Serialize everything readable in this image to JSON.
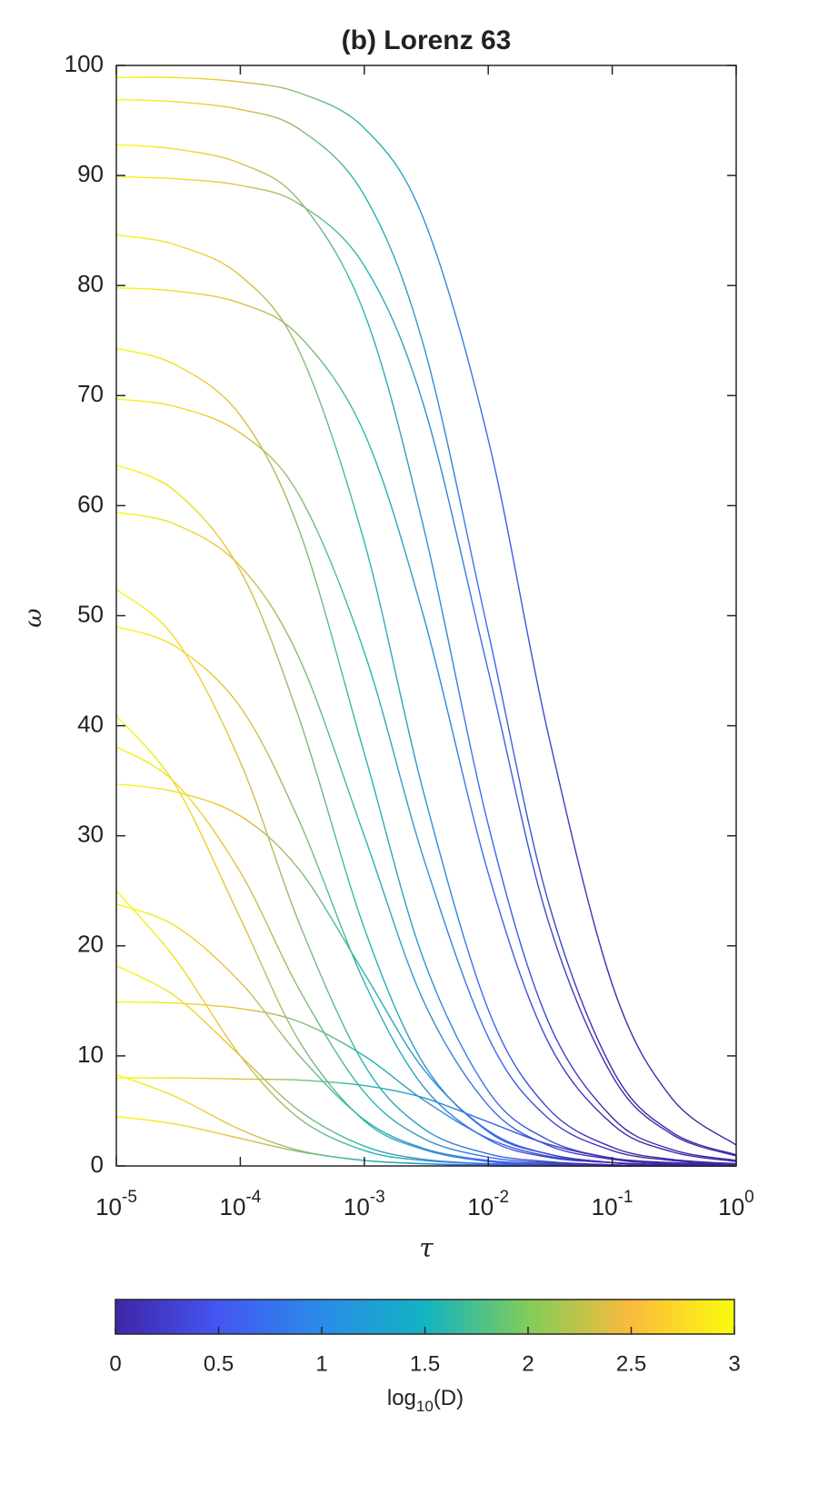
{
  "chart_data": {
    "type": "line",
    "title": "(b) Lorenz 63",
    "x_label": "τ",
    "y_label": "ω",
    "x_scale": "log",
    "x": [
      1e-05,
      3e-05,
      0.0001,
      0.0003,
      0.001,
      0.003,
      0.01,
      0.03,
      0.1,
      0.3,
      1
    ],
    "xlim": [
      1e-05,
      1
    ],
    "xticks": [
      {
        "value": 1e-05,
        "label": "10",
        "exponent": "-5"
      },
      {
        "value": 0.0001,
        "label": "10",
        "exponent": "-4"
      },
      {
        "value": 0.001,
        "label": "10",
        "exponent": "-3"
      },
      {
        "value": 0.01,
        "label": "10",
        "exponent": "-2"
      },
      {
        "value": 0.1,
        "label": "10",
        "exponent": "-1"
      },
      {
        "value": 1,
        "label": "10",
        "exponent": "0"
      }
    ],
    "ylim": [
      0,
      100
    ],
    "yticks": [
      0,
      10,
      20,
      30,
      40,
      50,
      60,
      70,
      80,
      90,
      100
    ],
    "series": [
      {
        "values": [
          98.9,
          98.9,
          98.5,
          97.5,
          94.3,
          86.1,
          66,
          39.6,
          16.5,
          6.2,
          1.9
        ]
      },
      {
        "values": [
          96.9,
          96.7,
          96,
          94.2,
          88.2,
          74.6,
          48.5,
          24.3,
          8.8,
          3.1,
          1
        ]
      },
      {
        "values": [
          92.8,
          92.4,
          91.1,
          87.7,
          77.5,
          58.1,
          31,
          13.3,
          4.4,
          1.5,
          0.5
        ]
      },
      {
        "values": [
          89.9,
          89.7,
          89.1,
          87.4,
          81.8,
          69.2,
          45,
          22.5,
          8.2,
          2.9,
          0.9
        ]
      },
      {
        "values": [
          84.6,
          83.7,
          80.9,
          74,
          56.7,
          34,
          14.2,
          5.3,
          1.7,
          0.6,
          0.2
        ]
      },
      {
        "values": [
          79.8,
          79.5,
          78.4,
          75.4,
          66.6,
          50,
          26.6,
          11.4,
          3.8,
          1.3,
          0.4
        ]
      },
      {
        "values": [
          74.3,
          72.8,
          68.2,
          57.7,
          37.5,
          18.8,
          6.8,
          2.4,
          0.7,
          0.2,
          0.1
        ]
      },
      {
        "values": [
          69.7,
          69,
          66.6,
          60.9,
          46.7,
          28,
          11.7,
          4.4,
          1.4,
          0.5,
          0.1
        ]
      },
      {
        "values": [
          63.7,
          61.3,
          54.1,
          40.6,
          21.6,
          9.3,
          3.1,
          1.1,
          0.3,
          0.1,
          0
        ]
      },
      {
        "values": [
          59.4,
          58.3,
          54.5,
          46.1,
          30,
          15,
          5.5,
          1.9,
          0.6,
          0.2,
          0.1
        ]
      },
      {
        "values": [
          52.4,
          47.9,
          36.7,
          22,
          9.2,
          3.4,
          1.1,
          0.4,
          0.1,
          0,
          0
        ]
      },
      {
        "values": [
          49,
          47.2,
          41.7,
          31.3,
          16.7,
          7.2,
          2.4,
          0.8,
          0.3,
          0.1,
          0
        ]
      },
      {
        "values": [
          40.9,
          34.6,
          22.5,
          11.3,
          4.1,
          1.5,
          0.4,
          0.1,
          0,
          0,
          0
        ]
      },
      {
        "values": [
          38.1,
          34.8,
          26.7,
          16,
          6.7,
          2.5,
          0.8,
          0.3,
          0.1,
          0,
          0
        ]
      },
      {
        "values": [
          34.7,
          34,
          31.8,
          26.9,
          17.5,
          8.8,
          3.2,
          1.1,
          0.3,
          0.1,
          0
        ]
      },
      {
        "values": [
          25,
          18.8,
          10,
          4.3,
          1.4,
          0.5,
          0.2,
          0.1,
          0,
          0,
          0
        ]
      },
      {
        "values": [
          23.8,
          21.8,
          16.7,
          10,
          4.2,
          1.6,
          0.5,
          0.2,
          0,
          0,
          0
        ]
      },
      {
        "values": [
          18.2,
          15.4,
          10,
          5,
          1.8,
          0.6,
          0.2,
          0.1,
          0,
          0,
          0
        ]
      },
      {
        "values": [
          14.9,
          14.8,
          14.3,
          13.1,
          10,
          6,
          2.5,
          0.9,
          0.3,
          0.1,
          0
        ]
      },
      {
        "values": [
          8.3,
          6.3,
          3.3,
          1.4,
          0.5,
          0.2,
          0.1,
          0,
          0,
          0,
          0
        ]
      },
      {
        "values": [
          8,
          8,
          7.9,
          7.8,
          7.3,
          6.2,
          4,
          2,
          0.7,
          0.3,
          0.1
        ]
      },
      {
        "values": [
          4.5,
          3.8,
          2.5,
          1.3,
          0.5,
          0.2,
          0,
          0,
          0,
          0,
          0
        ]
      }
    ],
    "color_by_tau": [
      {
        "tau": 1e-05,
        "d": 3
      },
      {
        "tau": 0.0001,
        "d": 2.4
      },
      {
        "tau": 0.001,
        "d": 1.6
      },
      {
        "tau": 0.01,
        "d": 0.7
      },
      {
        "tau": 0.1,
        "d": 0
      }
    ],
    "colorbar": {
      "label": "log",
      "label_sub": "10",
      "label_rest": "(D)",
      "lim": [
        0,
        3
      ],
      "ticks": [
        0,
        0.5,
        1,
        1.5,
        2,
        2.5,
        3
      ],
      "colormap": [
        "#3e26a8",
        "#4456f2",
        "#2a8ce8",
        "#12b3c2",
        "#81cc59",
        "#fcbb3c",
        "#f9fb0e"
      ]
    }
  }
}
